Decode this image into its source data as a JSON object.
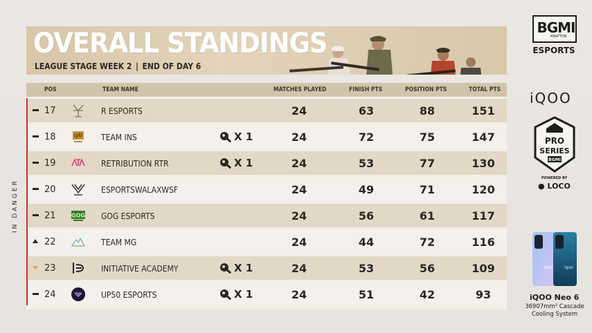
{
  "header": {
    "title": "OVERALL STANDINGS",
    "stage": "LEAGUE STAGE WEEK 2",
    "day": "END OF DAY 6",
    "separator": "|"
  },
  "table": {
    "columns": [
      "POS",
      "TEAM NAME",
      "MATCHES PLAYED",
      "FINISH PTS",
      "POSITION PTS",
      "TOTAL PTS"
    ],
    "rows": [
      {
        "pos": "17",
        "trend": "same",
        "logo": "r-esports-logo",
        "team": "R ESPORTS",
        "chicken": "",
        "matches": "24",
        "finish": "63",
        "position": "88",
        "total": "151"
      },
      {
        "pos": "18",
        "trend": "same",
        "logo": "team-ins-logo",
        "team": "TEAM INS",
        "chicken": "X 1",
        "matches": "24",
        "finish": "72",
        "position": "75",
        "total": "147"
      },
      {
        "pos": "19",
        "trend": "same",
        "logo": "retribution-rtr-logo",
        "team": "RETRIBUTION RTR",
        "chicken": "X 1",
        "matches": "24",
        "finish": "53",
        "position": "77",
        "total": "130"
      },
      {
        "pos": "20",
        "trend": "same",
        "logo": "esportswalaxwsf-logo",
        "team": "ESPORTSWALAXWSF",
        "chicken": "",
        "matches": "24",
        "finish": "49",
        "position": "71",
        "total": "120"
      },
      {
        "pos": "21",
        "trend": "same",
        "logo": "gog-esports-logo",
        "team": "GOG ESPORTS",
        "chicken": "",
        "matches": "24",
        "finish": "56",
        "position": "61",
        "total": "117"
      },
      {
        "pos": "22",
        "trend": "up",
        "logo": "team-mg-logo",
        "team": "TEAM MG",
        "chicken": "",
        "matches": "24",
        "finish": "44",
        "position": "72",
        "total": "116"
      },
      {
        "pos": "23",
        "trend": "down",
        "logo": "initiative-academy-logo",
        "team": "INITIATIVE ACADEMY",
        "chicken": "X 1",
        "matches": "24",
        "finish": "53",
        "position": "56",
        "total": "109"
      },
      {
        "pos": "24",
        "trend": "same",
        "logo": "up50-esports-logo",
        "team": "UP50 ESPORTS",
        "chicken": "X 1",
        "matches": "24",
        "finish": "51",
        "position": "42",
        "total": "93"
      }
    ]
  },
  "danger_label": "IN DANGER",
  "sidebar": {
    "brand": "BGMI",
    "krafton": "KRAFTON",
    "esports": "ESPORTS",
    "sponsor": "iQOO",
    "series_line1": "PRO",
    "series_line2": "SERIES",
    "series_line3": "BGMI",
    "powered_by": "POWERED BY",
    "loco": "LOCO",
    "phone_name": "iQOO Neo 6",
    "phone_spec_1": "36907mm² Cascade",
    "phone_spec_2": "Cooling System"
  },
  "colors": {
    "banner": "#d8c6a8",
    "header_row": "#d2c4ac",
    "odd_row": "#e3d8c6",
    "even_row": "#f4f1ec",
    "danger": "#c7302a",
    "up": "#2a2723",
    "down": "#c9a877"
  }
}
